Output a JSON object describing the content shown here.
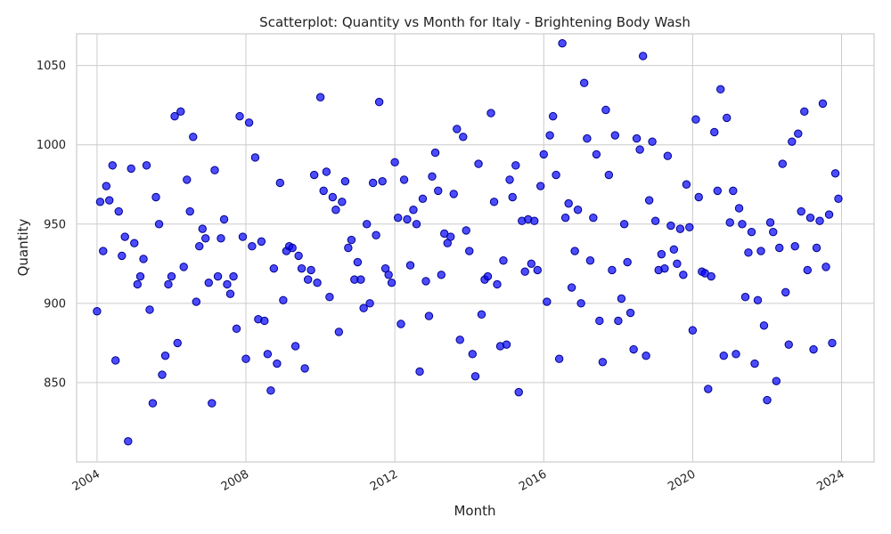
{
  "chart_data": {
    "type": "scatter",
    "title": "Scatterplot: Quantity vs Month for Italy - Brightening Body Wash",
    "xlabel": "Month",
    "ylabel": "Quantity",
    "x_type": "date",
    "xlim": [
      "2003-06-15",
      "2024-11-15"
    ],
    "ylim": [
      800,
      1070
    ],
    "x_ticks": [
      "2004",
      "2008",
      "2012",
      "2016",
      "2020",
      "2024"
    ],
    "y_ticks": [
      850,
      900,
      950,
      1000,
      1050
    ],
    "grid": true,
    "marker_color": "#0000ff",
    "points": [
      {
        "x": "2004-01",
        "y": 895
      },
      {
        "x": "2004-02",
        "y": 964
      },
      {
        "x": "2004-03",
        "y": 933
      },
      {
        "x": "2004-04",
        "y": 974
      },
      {
        "x": "2004-05",
        "y": 965
      },
      {
        "x": "2004-06",
        "y": 987
      },
      {
        "x": "2004-07",
        "y": 864
      },
      {
        "x": "2004-08",
        "y": 958
      },
      {
        "x": "2004-09",
        "y": 930
      },
      {
        "x": "2004-10",
        "y": 942
      },
      {
        "x": "2004-11",
        "y": 813
      },
      {
        "x": "2004-12",
        "y": 985
      },
      {
        "x": "2005-01",
        "y": 938
      },
      {
        "x": "2005-02",
        "y": 912
      },
      {
        "x": "2005-03",
        "y": 917
      },
      {
        "x": "2005-04",
        "y": 928
      },
      {
        "x": "2005-05",
        "y": 987
      },
      {
        "x": "2005-06",
        "y": 896
      },
      {
        "x": "2005-07",
        "y": 837
      },
      {
        "x": "2005-08",
        "y": 967
      },
      {
        "x": "2005-09",
        "y": 950
      },
      {
        "x": "2005-10",
        "y": 855
      },
      {
        "x": "2005-11",
        "y": 867
      },
      {
        "x": "2005-12",
        "y": 912
      },
      {
        "x": "2006-01",
        "y": 917
      },
      {
        "x": "2006-02",
        "y": 1018
      },
      {
        "x": "2006-03",
        "y": 875
      },
      {
        "x": "2006-04",
        "y": 1021
      },
      {
        "x": "2006-05",
        "y": 923
      },
      {
        "x": "2006-06",
        "y": 978
      },
      {
        "x": "2006-07",
        "y": 958
      },
      {
        "x": "2006-08",
        "y": 1005
      },
      {
        "x": "2006-09",
        "y": 901
      },
      {
        "x": "2006-10",
        "y": 936
      },
      {
        "x": "2006-11",
        "y": 947
      },
      {
        "x": "2006-12",
        "y": 941
      },
      {
        "x": "2007-01",
        "y": 913
      },
      {
        "x": "2007-02",
        "y": 837
      },
      {
        "x": "2007-03",
        "y": 984
      },
      {
        "x": "2007-04",
        "y": 917
      },
      {
        "x": "2007-05",
        "y": 941
      },
      {
        "x": "2007-06",
        "y": 953
      },
      {
        "x": "2007-07",
        "y": 912
      },
      {
        "x": "2007-08",
        "y": 906
      },
      {
        "x": "2007-09",
        "y": 917
      },
      {
        "x": "2007-10",
        "y": 884
      },
      {
        "x": "2007-11",
        "y": 1018
      },
      {
        "x": "2007-12",
        "y": 942
      },
      {
        "x": "2008-01",
        "y": 865
      },
      {
        "x": "2008-02",
        "y": 1014
      },
      {
        "x": "2008-03",
        "y": 936
      },
      {
        "x": "2008-04",
        "y": 992
      },
      {
        "x": "2008-05",
        "y": 890
      },
      {
        "x": "2008-06",
        "y": 939
      },
      {
        "x": "2008-07",
        "y": 889
      },
      {
        "x": "2008-08",
        "y": 868
      },
      {
        "x": "2008-09",
        "y": 845
      },
      {
        "x": "2008-10",
        "y": 922
      },
      {
        "x": "2008-11",
        "y": 862
      },
      {
        "x": "2008-12",
        "y": 976
      },
      {
        "x": "2009-01",
        "y": 902
      },
      {
        "x": "2009-02",
        "y": 933
      },
      {
        "x": "2009-03",
        "y": 936
      },
      {
        "x": "2009-04",
        "y": 935
      },
      {
        "x": "2009-05",
        "y": 873
      },
      {
        "x": "2009-06",
        "y": 930
      },
      {
        "x": "2009-07",
        "y": 922
      },
      {
        "x": "2009-08",
        "y": 859
      },
      {
        "x": "2009-09",
        "y": 915
      },
      {
        "x": "2009-10",
        "y": 921
      },
      {
        "x": "2009-11",
        "y": 981
      },
      {
        "x": "2009-12",
        "y": 913
      },
      {
        "x": "2010-01",
        "y": 1030
      },
      {
        "x": "2010-02",
        "y": 971
      },
      {
        "x": "2010-03",
        "y": 983
      },
      {
        "x": "2010-04",
        "y": 904
      },
      {
        "x": "2010-05",
        "y": 967
      },
      {
        "x": "2010-06",
        "y": 959
      },
      {
        "x": "2010-07",
        "y": 882
      },
      {
        "x": "2010-08",
        "y": 964
      },
      {
        "x": "2010-09",
        "y": 977
      },
      {
        "x": "2010-10",
        "y": 935
      },
      {
        "x": "2010-11",
        "y": 940
      },
      {
        "x": "2010-12",
        "y": 915
      },
      {
        "x": "2011-01",
        "y": 926
      },
      {
        "x": "2011-02",
        "y": 915
      },
      {
        "x": "2011-03",
        "y": 897
      },
      {
        "x": "2011-04",
        "y": 950
      },
      {
        "x": "2011-05",
        "y": 900
      },
      {
        "x": "2011-06",
        "y": 976
      },
      {
        "x": "2011-07",
        "y": 943
      },
      {
        "x": "2011-08",
        "y": 1027
      },
      {
        "x": "2011-09",
        "y": 977
      },
      {
        "x": "2011-10",
        "y": 922
      },
      {
        "x": "2011-11",
        "y": 918
      },
      {
        "x": "2011-12",
        "y": 913
      },
      {
        "x": "2012-01",
        "y": 989
      },
      {
        "x": "2012-02",
        "y": 954
      },
      {
        "x": "2012-03",
        "y": 887
      },
      {
        "x": "2012-04",
        "y": 978
      },
      {
        "x": "2012-05",
        "y": 953
      },
      {
        "x": "2012-06",
        "y": 924
      },
      {
        "x": "2012-07",
        "y": 959
      },
      {
        "x": "2012-08",
        "y": 950
      },
      {
        "x": "2012-09",
        "y": 857
      },
      {
        "x": "2012-10",
        "y": 966
      },
      {
        "x": "2012-11",
        "y": 914
      },
      {
        "x": "2012-12",
        "y": 892
      },
      {
        "x": "2013-01",
        "y": 980
      },
      {
        "x": "2013-02",
        "y": 995
      },
      {
        "x": "2013-03",
        "y": 971
      },
      {
        "x": "2013-04",
        "y": 918
      },
      {
        "x": "2013-05",
        "y": 944
      },
      {
        "x": "2013-06",
        "y": 938
      },
      {
        "x": "2013-07",
        "y": 942
      },
      {
        "x": "2013-08",
        "y": 969
      },
      {
        "x": "2013-09",
        "y": 1010
      },
      {
        "x": "2013-10",
        "y": 877
      },
      {
        "x": "2013-11",
        "y": 1005
      },
      {
        "x": "2013-12",
        "y": 946
      },
      {
        "x": "2014-01",
        "y": 933
      },
      {
        "x": "2014-02",
        "y": 868
      },
      {
        "x": "2014-03",
        "y": 854
      },
      {
        "x": "2014-04",
        "y": 988
      },
      {
        "x": "2014-05",
        "y": 893
      },
      {
        "x": "2014-06",
        "y": 915
      },
      {
        "x": "2014-07",
        "y": 917
      },
      {
        "x": "2014-08",
        "y": 1020
      },
      {
        "x": "2014-09",
        "y": 964
      },
      {
        "x": "2014-10",
        "y": 912
      },
      {
        "x": "2014-11",
        "y": 873
      },
      {
        "x": "2014-12",
        "y": 927
      },
      {
        "x": "2015-01",
        "y": 874
      },
      {
        "x": "2015-02",
        "y": 978
      },
      {
        "x": "2015-03",
        "y": 967
      },
      {
        "x": "2015-04",
        "y": 987
      },
      {
        "x": "2015-05",
        "y": 844
      },
      {
        "x": "2015-06",
        "y": 952
      },
      {
        "x": "2015-07",
        "y": 920
      },
      {
        "x": "2015-08",
        "y": 953
      },
      {
        "x": "2015-09",
        "y": 925
      },
      {
        "x": "2015-10",
        "y": 952
      },
      {
        "x": "2015-11",
        "y": 921
      },
      {
        "x": "2015-12",
        "y": 974
      },
      {
        "x": "2016-01",
        "y": 994
      },
      {
        "x": "2016-02",
        "y": 901
      },
      {
        "x": "2016-03",
        "y": 1006
      },
      {
        "x": "2016-04",
        "y": 1018
      },
      {
        "x": "2016-05",
        "y": 981
      },
      {
        "x": "2016-06",
        "y": 865
      },
      {
        "x": "2016-07",
        "y": 1064
      },
      {
        "x": "2016-08",
        "y": 954
      },
      {
        "x": "2016-09",
        "y": 963
      },
      {
        "x": "2016-10",
        "y": 910
      },
      {
        "x": "2016-11",
        "y": 933
      },
      {
        "x": "2016-12",
        "y": 959
      },
      {
        "x": "2017-01",
        "y": 900
      },
      {
        "x": "2017-02",
        "y": 1039
      },
      {
        "x": "2017-03",
        "y": 1004
      },
      {
        "x": "2017-04",
        "y": 927
      },
      {
        "x": "2017-05",
        "y": 954
      },
      {
        "x": "2017-06",
        "y": 994
      },
      {
        "x": "2017-07",
        "y": 889
      },
      {
        "x": "2017-08",
        "y": 863
      },
      {
        "x": "2017-09",
        "y": 1022
      },
      {
        "x": "2017-10",
        "y": 981
      },
      {
        "x": "2017-11",
        "y": 921
      },
      {
        "x": "2017-12",
        "y": 1006
      },
      {
        "x": "2018-01",
        "y": 889
      },
      {
        "x": "2018-02",
        "y": 903
      },
      {
        "x": "2018-03",
        "y": 950
      },
      {
        "x": "2018-04",
        "y": 926
      },
      {
        "x": "2018-05",
        "y": 894
      },
      {
        "x": "2018-06",
        "y": 871
      },
      {
        "x": "2018-07",
        "y": 1004
      },
      {
        "x": "2018-08",
        "y": 997
      },
      {
        "x": "2018-09",
        "y": 1056
      },
      {
        "x": "2018-10",
        "y": 867
      },
      {
        "x": "2018-11",
        "y": 965
      },
      {
        "x": "2018-12",
        "y": 1002
      },
      {
        "x": "2019-01",
        "y": 952
      },
      {
        "x": "2019-02",
        "y": 921
      },
      {
        "x": "2019-03",
        "y": 931
      },
      {
        "x": "2019-04",
        "y": 922
      },
      {
        "x": "2019-05",
        "y": 993
      },
      {
        "x": "2019-06",
        "y": 949
      },
      {
        "x": "2019-07",
        "y": 934
      },
      {
        "x": "2019-08",
        "y": 925
      },
      {
        "x": "2019-09",
        "y": 947
      },
      {
        "x": "2019-10",
        "y": 918
      },
      {
        "x": "2019-11",
        "y": 975
      },
      {
        "x": "2019-12",
        "y": 948
      },
      {
        "x": "2020-01",
        "y": 883
      },
      {
        "x": "2020-02",
        "y": 1016
      },
      {
        "x": "2020-03",
        "y": 967
      },
      {
        "x": "2020-04",
        "y": 920
      },
      {
        "x": "2020-05",
        "y": 919
      },
      {
        "x": "2020-06",
        "y": 846
      },
      {
        "x": "2020-07",
        "y": 917
      },
      {
        "x": "2020-08",
        "y": 1008
      },
      {
        "x": "2020-09",
        "y": 971
      },
      {
        "x": "2020-10",
        "y": 1035
      },
      {
        "x": "2020-11",
        "y": 867
      },
      {
        "x": "2020-12",
        "y": 1017
      },
      {
        "x": "2021-01",
        "y": 951
      },
      {
        "x": "2021-02",
        "y": 971
      },
      {
        "x": "2021-03",
        "y": 868
      },
      {
        "x": "2021-04",
        "y": 960
      },
      {
        "x": "2021-05",
        "y": 950
      },
      {
        "x": "2021-06",
        "y": 904
      },
      {
        "x": "2021-07",
        "y": 932
      },
      {
        "x": "2021-08",
        "y": 945
      },
      {
        "x": "2021-09",
        "y": 862
      },
      {
        "x": "2021-10",
        "y": 902
      },
      {
        "x": "2021-11",
        "y": 933
      },
      {
        "x": "2021-12",
        "y": 886
      },
      {
        "x": "2022-01",
        "y": 839
      },
      {
        "x": "2022-02",
        "y": 951
      },
      {
        "x": "2022-03",
        "y": 945
      },
      {
        "x": "2022-04",
        "y": 851
      },
      {
        "x": "2022-05",
        "y": 935
      },
      {
        "x": "2022-06",
        "y": 988
      },
      {
        "x": "2022-07",
        "y": 907
      },
      {
        "x": "2022-08",
        "y": 874
      },
      {
        "x": "2022-09",
        "y": 1002
      },
      {
        "x": "2022-10",
        "y": 936
      },
      {
        "x": "2022-11",
        "y": 1007
      },
      {
        "x": "2022-12",
        "y": 958
      },
      {
        "x": "2023-01",
        "y": 1021
      },
      {
        "x": "2023-02",
        "y": 921
      },
      {
        "x": "2023-03",
        "y": 954
      },
      {
        "x": "2023-04",
        "y": 871
      },
      {
        "x": "2023-05",
        "y": 935
      },
      {
        "x": "2023-06",
        "y": 952
      },
      {
        "x": "2023-07",
        "y": 1026
      },
      {
        "x": "2023-08",
        "y": 923
      },
      {
        "x": "2023-09",
        "y": 956
      },
      {
        "x": "2023-10",
        "y": 875
      },
      {
        "x": "2023-11",
        "y": 982
      },
      {
        "x": "2023-12",
        "y": 966
      }
    ]
  }
}
